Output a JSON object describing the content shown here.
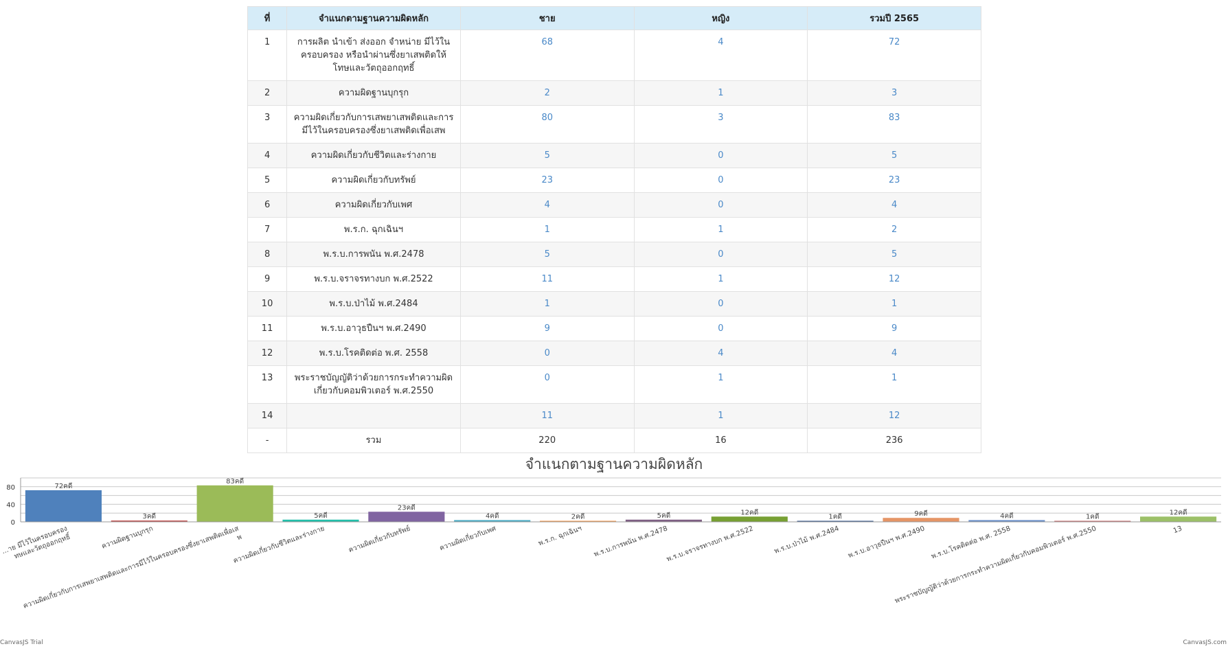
{
  "table": {
    "headers": [
      "ที่",
      "จำแนกตามฐานความผิดหลัก",
      "ชาย",
      "หญิง",
      "รวมปี 2565"
    ],
    "rows": [
      {
        "no": "1",
        "category": "การผลิต นำเข้า ส่งออก จำหน่าย มีไว้ในครอบครอง หรือนำผ่านซึ่งยาเสพติดให้โทษและวัตถุออกฤทธิ์",
        "male": "68",
        "female": "4",
        "total": "72"
      },
      {
        "no": "2",
        "category": "ความผิดฐานบุกรุก",
        "male": "2",
        "female": "1",
        "total": "3"
      },
      {
        "no": "3",
        "category": "ความผิดเกี่ยวกับการเสพยาเสพติดและการมีไว้ในครอบครองซึ่งยาเสพติดเพื่อเสพ",
        "male": "80",
        "female": "3",
        "total": "83"
      },
      {
        "no": "4",
        "category": "ความผิดเกี่ยวกับชีวิตและร่างกาย",
        "male": "5",
        "female": "0",
        "total": "5"
      },
      {
        "no": "5",
        "category": "ความผิดเกี่ยวกับทรัพย์",
        "male": "23",
        "female": "0",
        "total": "23"
      },
      {
        "no": "6",
        "category": "ความผิดเกี่ยวกับเพศ",
        "male": "4",
        "female": "0",
        "total": "4"
      },
      {
        "no": "7",
        "category": "พ.ร.ก. ฉุกเฉินฯ",
        "male": "1",
        "female": "1",
        "total": "2"
      },
      {
        "no": "8",
        "category": "พ.ร.บ.การพนัน พ.ศ.2478",
        "male": "5",
        "female": "0",
        "total": "5"
      },
      {
        "no": "9",
        "category": "พ.ร.บ.จราจรทางบก พ.ศ.2522",
        "male": "11",
        "female": "1",
        "total": "12"
      },
      {
        "no": "10",
        "category": "พ.ร.บ.ป่าไม้ พ.ศ.2484",
        "male": "1",
        "female": "0",
        "total": "1"
      },
      {
        "no": "11",
        "category": "พ.ร.บ.อาวุธปืนฯ พ.ศ.2490",
        "male": "9",
        "female": "0",
        "total": "9"
      },
      {
        "no": "12",
        "category": "พ.ร.บ.โรคติดต่อ พ.ศ. 2558",
        "male": "0",
        "female": "4",
        "total": "4"
      },
      {
        "no": "13",
        "category": "พระราชบัญญัติว่าด้วยการกระทำความผิดเกี่ยวกับคอมพิวเตอร์ พ.ศ.2550",
        "male": "0",
        "female": "1",
        "total": "1"
      },
      {
        "no": "14",
        "category": "",
        "male": "11",
        "female": "1",
        "total": "12"
      }
    ],
    "total_row": {
      "no": "-",
      "category": "รวม",
      "male": "220",
      "female": "16",
      "total": "236"
    }
  },
  "chart_data": {
    "type": "bar",
    "title": "จำแนกตามฐานความผิดหลัก",
    "categories": [
      "การผลิต นำเข้า ส่งออก จำหน่าย มีไว้ในครอบครอง หรือนำผ่านซึ่งยาเสพติดให้โทษและวัตถุออกฤทธิ์",
      "ความผิดฐานบุกรุก",
      "ความผิดเกี่ยวกับการเสพยาเสพติดและการมีไว้ในครอบครองซึ่งยาเสพติดเพื่อเสพ",
      "ความผิดเกี่ยวกับชีวิตและร่างกาย",
      "ความผิดเกี่ยวกับทรัพย์",
      "ความผิดเกี่ยวกับเพศ",
      "พ.ร.ก. ฉุกเฉินฯ",
      "พ.ร.บ.การพนัน พ.ศ.2478",
      "พ.ร.บ.จราจรทางบก พ.ศ.2522",
      "พ.ร.บ.ป่าไม้ พ.ศ.2484",
      "พ.ร.บ.อาวุธปืนฯ พ.ศ.2490",
      "พ.ร.บ.โรคติดต่อ พ.ศ. 2558",
      "พระราชบัญญัติว่าด้วยการกระทำความผิดเกี่ยวกับคอมพิวเตอร์ พ.ศ.2550",
      "13"
    ],
    "axis_labels": [
      "...าย มีไว้ในครอบครอง\nทษและวัตถุออกฤทธิ์",
      "ความผิดฐานบุกรุก",
      "ความผิดเกี่ยวกับการเสพยาเสพติดและการมีไว้ในครอบครองซึ่งยาเสพติดเพื่อเส\nพ",
      "ความผิดเกี่ยวกับชีวิตและร่างกาย",
      "ความผิดเกี่ยวกับทรัพย์",
      "ความผิดเกี่ยวกับเพศ",
      "พ.ร.ก. ฉุกเฉินฯ",
      "พ.ร.บ.การพนัน พ.ศ.2478",
      "พ.ร.บ.จราจรทางบก พ.ศ.2522",
      "พ.ร.บ.ป่าไม้ พ.ศ.2484",
      "พ.ร.บ.อาวุธปืนฯ พ.ศ.2490",
      "พ.ร.บ.โรคติดต่อ พ.ศ. 2558",
      "พระราชบัญญัติว่าด้วยการกระทำความผิดเกี่ยวกับคอมพิวเตอร์ พ.ศ.2550",
      "13"
    ],
    "values": [
      72,
      3,
      83,
      5,
      23,
      4,
      2,
      5,
      12,
      1,
      9,
      4,
      1,
      12
    ],
    "data_labels": [
      "72คดี",
      "3คดี",
      "83คดี",
      "5คดี",
      "23คดี",
      "4คดี",
      "2คดี",
      "5คดี",
      "12คดี",
      "1คดี",
      "9คดี",
      "4คดี",
      "1คดี",
      "12คดี"
    ],
    "colors": [
      "#4f81bc",
      "#c0504e",
      "#9bbb58",
      "#23bfaa",
      "#8064a1",
      "#4aacc5",
      "#f79647",
      "#7f6084",
      "#77a033",
      "#33558b",
      "#e59566",
      "#6a8fc9",
      "#c3686a",
      "#9cc068"
    ],
    "ylim": [
      0,
      100
    ],
    "yticks": [
      0,
      40,
      80
    ],
    "grid": true,
    "legend": "none"
  },
  "watermarks": {
    "left": "CanvasJS Trial",
    "right": "CanvasJS.com"
  }
}
